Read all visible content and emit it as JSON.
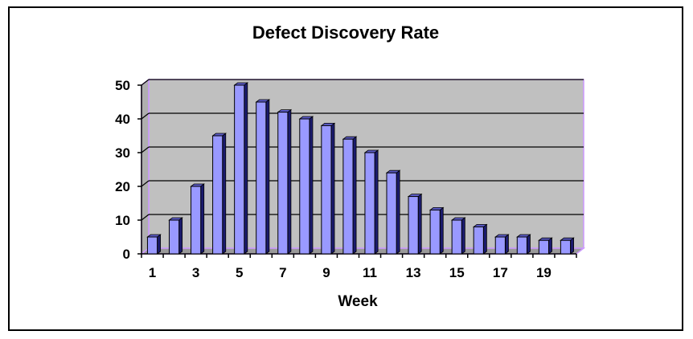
{
  "chart_data": {
    "type": "bar",
    "title": "Defect Discovery Rate",
    "xlabel": "Week",
    "ylabel": "",
    "x": [
      1,
      2,
      3,
      4,
      5,
      6,
      7,
      8,
      9,
      10,
      11,
      12,
      13,
      14,
      15,
      16,
      17,
      18,
      19,
      20
    ],
    "x_tick_labels": [
      "1",
      "3",
      "5",
      "7",
      "9",
      "11",
      "13",
      "15",
      "17",
      "19"
    ],
    "values": [
      5,
      10,
      20,
      35,
      50,
      45,
      42,
      40,
      38,
      34,
      30,
      24,
      17,
      13,
      10,
      8,
      5,
      5,
      4,
      4
    ],
    "ylim": [
      0,
      50
    ],
    "y_ticks": [
      0,
      10,
      20,
      30,
      40,
      50
    ],
    "grid": true,
    "legend": "none",
    "colors": {
      "bar_front": "#9999FF",
      "bar_side": "#1B1B6E",
      "bar_top": "#5C5CC8",
      "plot_background": "#C0C0C0",
      "plot_wall_border": "#CC99FF",
      "gridline": "#000000"
    }
  }
}
